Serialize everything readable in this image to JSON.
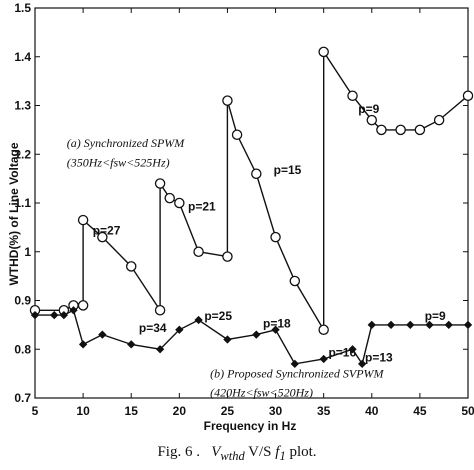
{
  "chart_data": {
    "type": "line",
    "xlabel": "Frequency in Hz",
    "ylabel": "WTHD(%) of Line Voltage",
    "xlim": [
      5,
      50
    ],
    "ylim": [
      0.7,
      1.5
    ],
    "xticks": [
      5,
      10,
      15,
      20,
      25,
      30,
      35,
      40,
      45,
      50
    ],
    "yticks": [
      0.7,
      0.8,
      0.9,
      1,
      1.1,
      1.2,
      1.3,
      1.4,
      1.5
    ],
    "ytick_labels": [
      "0.7",
      "0.8",
      "0.9",
      "1",
      "1.1",
      "1.2",
      "1.3",
      "1.4",
      "1.5"
    ],
    "grid": false,
    "series": [
      {
        "name": "(a) Synchronized SPWM",
        "marker": "circle",
        "x": [
          5,
          8,
          9,
          10,
          10,
          12,
          15,
          18,
          18,
          19,
          20,
          22,
          25,
          25,
          26,
          28,
          30,
          32,
          35,
          35,
          38,
          40,
          41,
          43,
          45,
          47,
          50
        ],
        "y": [
          0.88,
          0.88,
          0.89,
          0.89,
          1.065,
          1.03,
          0.97,
          0.88,
          1.14,
          1.11,
          1.1,
          1.0,
          0.99,
          1.31,
          1.24,
          1.16,
          1.03,
          0.94,
          0.84,
          1.41,
          1.32,
          1.27,
          1.25,
          1.25,
          1.25,
          1.27,
          1.32
        ]
      },
      {
        "name": "(b) Proposed Synchronized SVPWM",
        "marker": "diamond",
        "x": [
          5,
          7,
          8,
          9,
          10,
          12,
          15,
          18,
          20,
          22,
          25,
          28,
          30,
          32,
          35,
          38,
          39,
          40,
          42,
          44,
          46,
          48,
          50
        ],
        "y": [
          0.87,
          0.87,
          0.87,
          0.88,
          0.81,
          0.83,
          0.81,
          0.8,
          0.84,
          0.86,
          0.82,
          0.83,
          0.84,
          0.77,
          0.78,
          0.8,
          0.77,
          0.85,
          0.85,
          0.85,
          0.85,
          0.85,
          0.85
        ]
      }
    ],
    "annotations": [
      {
        "text": "(a) Synchronized SPWM",
        "x": 8.3,
        "y": 1.215,
        "style": "italic"
      },
      {
        "text": "(350Hz<fsw<525Hz)",
        "x": 8.3,
        "y": 1.175,
        "style": "italic"
      },
      {
        "text": "p=27",
        "x": 11.0,
        "y": 1.035,
        "style": "bold"
      },
      {
        "text": "p=21",
        "x": 20.9,
        "y": 1.085,
        "style": "bold"
      },
      {
        "text": "p=15",
        "x": 29.8,
        "y": 1.16,
        "style": "bold"
      },
      {
        "text": "p=9",
        "x": 38.6,
        "y": 1.285,
        "style": "bold"
      },
      {
        "text": "p=34",
        "x": 15.8,
        "y": 0.835,
        "style": "bold"
      },
      {
        "text": "p=25",
        "x": 22.6,
        "y": 0.86,
        "style": "bold"
      },
      {
        "text": "p=18",
        "x": 28.7,
        "y": 0.845,
        "style": "bold"
      },
      {
        "text": "p=16",
        "x": 35.5,
        "y": 0.785,
        "style": "bold"
      },
      {
        "text": "p=13",
        "x": 39.3,
        "y": 0.775,
        "style": "bold"
      },
      {
        "text": "p=9",
        "x": 45.5,
        "y": 0.86,
        "style": "bold"
      },
      {
        "text": "(b) Proposed Synchronized SVPWM",
        "x": 23.2,
        "y": 0.742,
        "style": "italic"
      },
      {
        "text": "(420Hz<fsw<520Hz)",
        "x": 23.2,
        "y": 0.703,
        "style": "italic"
      }
    ]
  },
  "caption": {
    "prefix": "Fig. 6 .",
    "symbol": "V",
    "symbol_sub": "wthd",
    "middle": " V/S ",
    "f": "f",
    "f_sub": "1",
    "suffix": " plot."
  }
}
